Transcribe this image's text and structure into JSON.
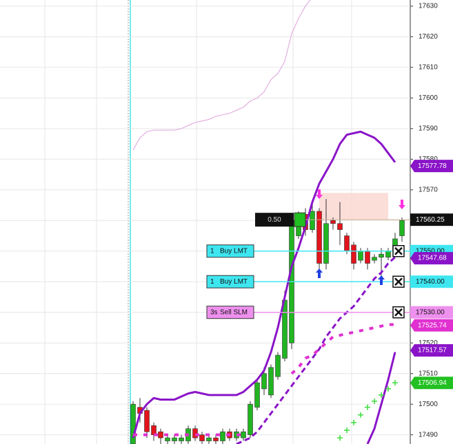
{
  "chart_data": {
    "type": "candlestick",
    "ylim": [
      17487,
      17632
    ],
    "yticks": [
      17490,
      17500,
      17510,
      17520,
      17530,
      17540,
      17550,
      17560,
      17570,
      17580,
      17590,
      17600,
      17610,
      17620,
      17630
    ],
    "grid": true,
    "up_color": "#22b522",
    "down_color": "#e3141c",
    "candles": {
      "open": [
        17487,
        17499,
        17498,
        17493,
        17491,
        17488,
        17488,
        17488,
        17488,
        17492,
        17490,
        17488,
        17489,
        17488,
        17491,
        17489,
        17489,
        17490,
        17499,
        17505,
        17503,
        17509,
        17515,
        17520,
        17555,
        17562,
        17557,
        17563,
        17546,
        17560,
        17559,
        17555,
        17552,
        17547,
        17550,
        17547,
        17548,
        17548,
        17550,
        17555
      ],
      "high": [
        17501,
        17502,
        17499,
        17494,
        17492,
        17490,
        17490,
        17490,
        17493,
        17493,
        17491,
        17490,
        17490,
        17492,
        17492,
        17492,
        17492,
        17501,
        17508,
        17512,
        17513,
        17517,
        17537,
        17561,
        17563,
        17564,
        17566,
        17564,
        17567,
        17561,
        17566,
        17556,
        17553,
        17551,
        17551,
        17549,
        17551,
        17551,
        17556,
        17561
      ],
      "low": [
        17486,
        17494,
        17489,
        17488,
        17487,
        17487,
        17487,
        17487,
        17487,
        17488,
        17487,
        17487,
        17487,
        17487,
        17488,
        17488,
        17488,
        17489,
        17498,
        17503,
        17502,
        17508,
        17514,
        17518,
        17554,
        17555,
        17556,
        17543,
        17544,
        17557,
        17552,
        17549,
        17544,
        17546,
        17544,
        17546,
        17540,
        17547,
        17549,
        17553
      ],
      "close": [
        17500,
        17497,
        17491,
        17490,
        17489,
        17489,
        17489,
        17489,
        17492,
        17489,
        17488,
        17489,
        17488,
        17491,
        17489,
        17491,
        17491,
        17500,
        17507,
        17510,
        17512,
        17516,
        17534,
        17560,
        17561,
        17557,
        17563,
        17546,
        17559,
        17559,
        17557,
        17550,
        17546,
        17550,
        17546,
        17548,
        17549,
        17550,
        17554,
        17560
      ]
    },
    "lines": [
      {
        "color": "#dca0dc",
        "width": 1,
        "dash": "none",
        "values": [
          17583,
          17587,
          17589,
          17589.5,
          17589.5,
          17589.5,
          17589.5,
          17590,
          17591,
          17592,
          17592.5,
          17593,
          17594,
          17594.5,
          17595,
          17596,
          17597,
          17599,
          17600,
          17602,
          17606,
          17608,
          17612,
          17621,
          17626,
          17630,
          17633,
          null,
          null,
          null,
          null,
          null,
          null,
          null,
          null,
          null,
          null,
          null,
          null,
          null
        ]
      },
      {
        "color": "#8a14c8",
        "width": 3,
        "dash": "none",
        "values": [
          17489,
          17497,
          17500,
          17502,
          17501.5,
          17501.5,
          17501.5,
          17502.5,
          17503.5,
          17504,
          17503.5,
          17503,
          17503,
          17503,
          17503,
          17503,
          17504,
          17506,
          17508,
          17511,
          17517,
          17525,
          17535,
          17545,
          17551,
          17558,
          17566,
          17572,
          17576,
          17580,
          17585,
          17588,
          17588.5,
          17589,
          17588,
          17587,
          17585,
          17582,
          17579,
          null
        ]
      },
      {
        "color": "#8a14c8",
        "width": 3,
        "dash": "8 5",
        "values": [
          null,
          null,
          null,
          null,
          null,
          null,
          null,
          null,
          null,
          null,
          null,
          null,
          null,
          null,
          null,
          17487,
          17488,
          17489,
          17491,
          17494,
          17497,
          17500,
          17503,
          17506,
          17509,
          17512,
          17515,
          17518,
          17522,
          17525,
          17528,
          17530,
          17532,
          17535,
          17538,
          17541,
          17543,
          17546,
          17548,
          null
        ]
      },
      {
        "color": "#e030d0",
        "width": 4,
        "dash": "6 9",
        "values": [
          17490,
          17490,
          17490,
          17490,
          17490,
          17490,
          17490,
          17490,
          17490,
          17490,
          17490,
          17490,
          17490,
          17490,
          17490,
          17490,
          17490,
          null,
          null,
          null,
          null,
          null,
          null,
          17510,
          17512,
          17515,
          17516,
          17518,
          17520,
          17522,
          17522.5,
          17523,
          17523.5,
          17524,
          17524.5,
          17525,
          17525.5,
          17526,
          17526,
          null
        ]
      },
      {
        "color": "#8a14c8",
        "width": 3,
        "dash": "none",
        "values": [
          null,
          null,
          null,
          null,
          null,
          null,
          null,
          null,
          null,
          null,
          null,
          null,
          null,
          null,
          null,
          null,
          null,
          null,
          null,
          null,
          null,
          null,
          null,
          null,
          null,
          null,
          null,
          null,
          null,
          null,
          null,
          null,
          null,
          null,
          17487,
          17492,
          17500,
          17508,
          17517,
          null
        ]
      }
    ],
    "markers": {
      "color": "#3cdc3c",
      "values": [
        null,
        null,
        null,
        null,
        null,
        null,
        null,
        null,
        null,
        null,
        null,
        null,
        null,
        null,
        null,
        null,
        null,
        null,
        null,
        null,
        null,
        null,
        null,
        null,
        null,
        null,
        null,
        null,
        null,
        null,
        17489,
        17491.5,
        17494,
        17496.5,
        17499,
        17501,
        17503,
        17505,
        17507,
        null
      ]
    },
    "position": {
      "qty": "0.50",
      "price": 17560.25,
      "price_label": "17560.25"
    },
    "orders": [
      {
        "qty": "1",
        "side": "Buy LMT",
        "price": 17550,
        "price_label": "17550.00",
        "color": "#3ee6f0"
      },
      {
        "qty": "1",
        "side": "Buy LMT",
        "price": 17540,
        "price_label": "17540.00",
        "color": "#3ee6f0"
      },
      {
        "qty": "3s",
        "side": "Sell SLM",
        "price": 17530,
        "price_label": "17530.00",
        "color": "#ee90ee"
      }
    ],
    "price_tags": [
      {
        "value": 17577.78,
        "label": "17577.78",
        "color": "#8a14c8"
      },
      {
        "value": 17547.68,
        "label": "17547.68",
        "color": "#8a14c8"
      },
      {
        "value": 17525.74,
        "label": "17525.74",
        "color": "#e030d0"
      },
      {
        "value": 17517.57,
        "label": "17517.57",
        "color": "#8a14c8"
      },
      {
        "value": 17506.94,
        "label": "17506.94",
        "color": "#22c022"
      }
    ]
  }
}
